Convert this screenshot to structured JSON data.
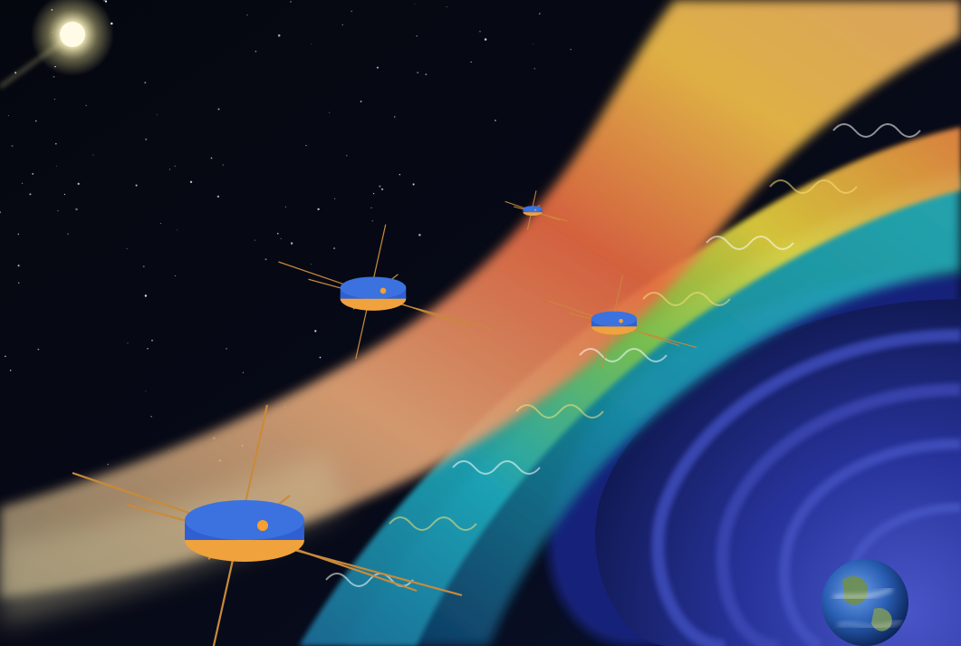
{
  "scene": {
    "colors": {
      "space": "#04060f",
      "sun": "#fff6c8",
      "bow_shock_warm": [
        "#f2b468",
        "#f6c24b",
        "#ea6a43",
        "#e8a878"
      ],
      "bow_shock_cool": [
        "#7fc24a",
        "#e5d23d",
        "#1ea7b8",
        "#1a6f99"
      ],
      "magnetosphere": [
        "#1a2a8a",
        "#27339a",
        "#3b48b8"
      ],
      "earth_ocean": "#2a5fb5",
      "earth_land": "#6e8f4e",
      "spacecraft_body": "#2f5fd0",
      "spacecraft_panel": "#f0a23c",
      "boom": "#c98a3a"
    },
    "spacecraft_count": 4,
    "icons": [
      "sun-icon",
      "earth-icon",
      "spacecraft-icon"
    ]
  }
}
